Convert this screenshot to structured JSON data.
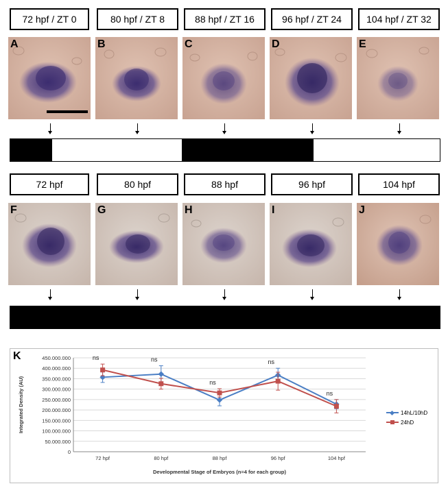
{
  "row1": {
    "labels": [
      "72 hpf / ZT 0",
      "80 hpf / ZT 8",
      "88 hpf / ZT 16",
      "96 hpf / ZT 24",
      "104 hpf / ZT 32"
    ],
    "letters": [
      "A",
      "B",
      "C",
      "D",
      "E"
    ],
    "light_schedule": [
      "dark",
      "light",
      "light",
      "dark",
      "dark",
      "light",
      "light"
    ]
  },
  "row2": {
    "labels": [
      "72 hpf",
      "80 hpf",
      "88 hpf",
      "96 hpf",
      "104 hpf"
    ],
    "letters": [
      "F",
      "G",
      "H",
      "I",
      "J"
    ],
    "light_schedule": [
      "dark"
    ]
  },
  "colors": {
    "stain": "#4a3a7e",
    "tissue": "#d8b7a6",
    "light_segment": "#ffffff",
    "dark_segment": "#000000",
    "series_blue": "#4a7ec4",
    "series_red": "#c0504d"
  },
  "chart_data": {
    "type": "line",
    "panel_letter": "K",
    "categories": [
      "72 hpf",
      "80 hpf",
      "88 hpf",
      "96 hpf",
      "104 hpf"
    ],
    "xlabel": "Developmental Stage of Embryos (n=4 for each group)",
    "ylabel": "Integrated Density (AU)",
    "ylim": [
      0,
      450000000
    ],
    "yticks": [
      "0",
      "50.000.000",
      "100.000.000",
      "150.000.000",
      "200.000.000",
      "250.000.000",
      "300.000.000",
      "350.000.000",
      "400.000.000",
      "450.000.000"
    ],
    "series": [
      {
        "name": "14hL/10hD",
        "values": [
          357000000,
          372000000,
          248000000,
          367000000,
          228000000
        ],
        "errors": [
          25000000,
          40000000,
          28000000,
          33000000,
          22000000
        ]
      },
      {
        "name": "24hD",
        "values": [
          392000000,
          326000000,
          282000000,
          338000000,
          218000000
        ],
        "errors": [
          28000000,
          26000000,
          20000000,
          43000000,
          32000000
        ]
      }
    ],
    "annotations": [
      "ns",
      "ns",
      "ns",
      "ns",
      "ns"
    ],
    "grid": true,
    "legend_position": "right"
  }
}
